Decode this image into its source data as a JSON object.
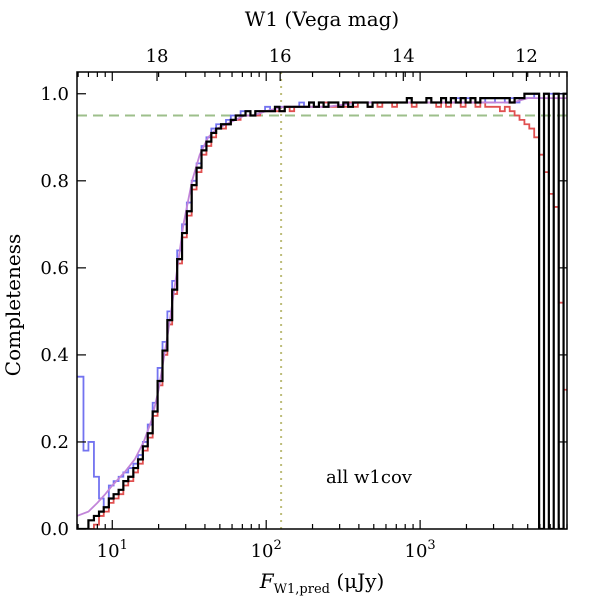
{
  "chart_data": {
    "type": "line",
    "xlabel": "F_W1,pred (μJy)",
    "xlabel_main": "F",
    "xlabel_sub": "W1,pred",
    "xlabel_unit": " (μJy)",
    "top_xlabel": "W1 (Vega mag)",
    "ylabel": "Completeness",
    "annotation": "all w1cov",
    "x_scale": "log",
    "xlim": [
      5.9,
      9000
    ],
    "ylim": [
      0,
      1.05
    ],
    "x_ticks": [
      {
        "value": 10,
        "base": "10",
        "exp": "1"
      },
      {
        "value": 100,
        "base": "10",
        "exp": "2"
      },
      {
        "value": 1000,
        "base": "10",
        "exp": "3"
      }
    ],
    "y_ticks": [
      {
        "value": 0.0,
        "label": "0.0"
      },
      {
        "value": 0.2,
        "label": "0.2"
      },
      {
        "value": 0.4,
        "label": "0.4"
      },
      {
        "value": 0.6,
        "label": "0.6"
      },
      {
        "value": 0.8,
        "label": "0.8"
      },
      {
        "value": 1.0,
        "label": "1.0"
      }
    ],
    "top_ticks": [
      {
        "mag": 18,
        "label": "18"
      },
      {
        "mag": 16,
        "label": "16"
      },
      {
        "mag": 14,
        "label": "14"
      },
      {
        "mag": 12,
        "label": "12"
      }
    ],
    "mag_zero_point_uJy": 309540000,
    "hline": {
      "y": 0.95,
      "color": "#9dbf8b",
      "style": "dashed"
    },
    "vline": {
      "x": 125,
      "color": "#bdbd7a",
      "style": "dotted"
    },
    "series": [
      {
        "color": "#7373f0",
        "step": true,
        "x": [
          5.9,
          6.5,
          7.0,
          7.6,
          8.2,
          8.8,
          9.5,
          10.2,
          11.0,
          11.8,
          12.7,
          13.7,
          14.7,
          15.8,
          17.0,
          18.3,
          19.7,
          21.2,
          22.8,
          24.5,
          26.4,
          28.4,
          30.5,
          32.8,
          35.3,
          38.0,
          40.9,
          44.0,
          47.3,
          50.9,
          54.8,
          58.9,
          63.4,
          68.2,
          73.4,
          79.0,
          85.0,
          91.4,
          98.3,
          106,
          114,
          122,
          132,
          142,
          152,
          164,
          176,
          190,
          204,
          220,
          236,
          254,
          274,
          294,
          317,
          341,
          366,
          394,
          424,
          456,
          491,
          528,
          568,
          611,
          658,
          708,
          762,
          820,
          882,
          949,
          1021,
          1099,
          1182,
          1272,
          1369,
          1473,
          1585,
          1706,
          1835,
          1975,
          2125,
          2287,
          2461,
          2648,
          2849,
          3066,
          3299,
          3550,
          3820,
          4110,
          4423,
          4760,
          5120,
          5510,
          5930,
          6380,
          6860,
          7380,
          7950,
          8550,
          9000
        ],
        "y": [
          0.35,
          0.18,
          0.2,
          0.12,
          0.07,
          0.05,
          0.1,
          0.11,
          0.12,
          0.13,
          0.14,
          0.15,
          0.17,
          0.2,
          0.24,
          0.29,
          0.37,
          0.43,
          0.5,
          0.57,
          0.64,
          0.7,
          0.75,
          0.8,
          0.84,
          0.88,
          0.9,
          0.92,
          0.93,
          0.93,
          0.94,
          0.95,
          0.95,
          0.96,
          0.96,
          0.95,
          0.96,
          0.96,
          0.97,
          0.96,
          0.97,
          0.97,
          0.97,
          0.97,
          0.97,
          0.98,
          0.97,
          0.98,
          0.97,
          0.98,
          0.98,
          0.98,
          0.98,
          0.97,
          0.98,
          0.98,
          0.98,
          0.98,
          0.98,
          0.98,
          0.98,
          0.98,
          0.98,
          0.98,
          0.98,
          0.98,
          0.98,
          0.98,
          0.98,
          0.98,
          0.98,
          0.98,
          0.98,
          0.98,
          0.99,
          0.98,
          0.98,
          0.99,
          0.98,
          0.99,
          0.98,
          0.98,
          0.99,
          0.98,
          0.98,
          0.99,
          0.99,
          0.98,
          0.99,
          0.98,
          0.99,
          0.99,
          0.99,
          1.0,
          0.99,
          1.0,
          1.0,
          1.0,
          1.0,
          1.0,
          1.0
        ]
      },
      {
        "color": "#e05050",
        "step": true,
        "x": [
          5.9,
          6.5,
          7.0,
          7.6,
          8.2,
          8.8,
          9.5,
          10.2,
          11.0,
          11.8,
          12.7,
          13.7,
          14.7,
          15.8,
          17.0,
          18.3,
          19.7,
          21.2,
          22.8,
          24.5,
          26.4,
          28.4,
          30.5,
          32.8,
          35.3,
          38.0,
          40.9,
          44.0,
          47.3,
          50.9,
          54.8,
          58.9,
          63.4,
          68.2,
          73.4,
          79.0,
          85.0,
          91.4,
          98.3,
          106,
          114,
          122,
          132,
          142,
          152,
          164,
          176,
          190,
          204,
          220,
          236,
          254,
          274,
          294,
          317,
          341,
          366,
          394,
          424,
          456,
          491,
          528,
          568,
          611,
          658,
          708,
          762,
          820,
          882,
          949,
          1021,
          1099,
          1182,
          1272,
          1369,
          1473,
          1585,
          1706,
          1835,
          1975,
          2125,
          2287,
          2461,
          2648,
          2849,
          3066,
          3299,
          3550,
          3820,
          4110,
          4423,
          4760,
          5120,
          5510,
          5930,
          6380,
          6860,
          7380,
          7950,
          8550,
          9000
        ],
        "y": [
          0.0,
          0.0,
          0.0,
          0.01,
          0.03,
          0.04,
          0.06,
          0.07,
          0.08,
          0.1,
          0.11,
          0.13,
          0.15,
          0.18,
          0.21,
          0.26,
          0.33,
          0.4,
          0.47,
          0.54,
          0.61,
          0.67,
          0.72,
          0.78,
          0.82,
          0.86,
          0.88,
          0.9,
          0.92,
          0.92,
          0.93,
          0.94,
          0.94,
          0.95,
          0.95,
          0.95,
          0.95,
          0.96,
          0.96,
          0.96,
          0.96,
          0.96,
          0.97,
          0.96,
          0.97,
          0.97,
          0.97,
          0.97,
          0.97,
          0.97,
          0.98,
          0.97,
          0.97,
          0.97,
          0.97,
          0.98,
          0.97,
          0.98,
          0.98,
          0.97,
          0.98,
          0.97,
          0.98,
          0.98,
          0.97,
          0.98,
          0.98,
          0.98,
          0.97,
          0.98,
          0.98,
          0.98,
          0.98,
          0.97,
          0.98,
          0.97,
          0.98,
          0.98,
          0.97,
          0.98,
          0.98,
          0.97,
          0.98,
          0.97,
          0.97,
          0.97,
          0.96,
          0.97,
          0.96,
          0.95,
          0.94,
          0.93,
          0.92,
          0.9,
          0.86,
          0.82,
          0.77,
          0.74,
          0.52,
          0.32,
          0.32
        ]
      },
      {
        "color": "#c285d9",
        "step": false,
        "x": [
          5.9,
          7,
          8,
          9,
          10,
          12,
          14,
          16,
          18,
          20,
          23,
          26,
          29,
          33,
          37,
          42,
          48,
          55,
          63,
          72,
          82,
          100,
          130,
          180,
          250,
          400,
          700,
          1200,
          2000,
          3000,
          4000,
          5000,
          6000,
          7000,
          8000,
          9000
        ],
        "y": [
          0.03,
          0.04,
          0.06,
          0.08,
          0.1,
          0.13,
          0.16,
          0.2,
          0.25,
          0.32,
          0.45,
          0.58,
          0.7,
          0.8,
          0.86,
          0.9,
          0.92,
          0.93,
          0.94,
          0.95,
          0.95,
          0.96,
          0.97,
          0.97,
          0.97,
          0.98,
          0.98,
          0.98,
          0.98,
          0.98,
          0.98,
          0.99,
          0.99,
          0.99,
          0.99,
          0.99
        ]
      },
      {
        "color": "#000000",
        "step": true,
        "x": [
          5.9,
          6.5,
          7.0,
          7.6,
          8.2,
          8.8,
          9.5,
          10.2,
          11.0,
          11.8,
          12.7,
          13.7,
          14.7,
          15.8,
          17.0,
          18.3,
          19.7,
          21.2,
          22.8,
          24.5,
          26.4,
          28.4,
          30.5,
          32.8,
          35.3,
          38.0,
          40.9,
          44.0,
          47.3,
          50.9,
          54.8,
          58.9,
          63.4,
          68.2,
          73.4,
          79.0,
          85.0,
          91.4,
          98.3,
          106,
          114,
          122,
          132,
          142,
          152,
          164,
          176,
          190,
          204,
          220,
          236,
          254,
          274,
          294,
          317,
          341,
          366,
          394,
          424,
          456,
          491,
          528,
          568,
          611,
          658,
          708,
          762,
          820,
          882,
          949,
          1021,
          1099,
          1182,
          1272,
          1369,
          1473,
          1585,
          1706,
          1835,
          1975,
          2125,
          2287,
          2461,
          2648,
          2849,
          3066,
          3299,
          3550,
          3820,
          4110,
          4423,
          4760,
          5120,
          5510,
          5930,
          6380,
          6860,
          7380,
          7950,
          8550,
          9000
        ],
        "y": [
          0.0,
          0.0,
          0.02,
          0.03,
          0.04,
          0.05,
          0.07,
          0.08,
          0.09,
          0.11,
          0.12,
          0.14,
          0.16,
          0.19,
          0.22,
          0.27,
          0.34,
          0.41,
          0.48,
          0.55,
          0.62,
          0.68,
          0.73,
          0.79,
          0.83,
          0.87,
          0.89,
          0.91,
          0.92,
          0.93,
          0.93,
          0.94,
          0.95,
          0.95,
          0.96,
          0.95,
          0.96,
          0.96,
          0.96,
          0.96,
          0.97,
          0.96,
          0.97,
          0.97,
          0.97,
          0.97,
          0.97,
          0.98,
          0.97,
          0.98,
          0.97,
          0.98,
          0.98,
          0.97,
          0.98,
          0.97,
          0.98,
          0.98,
          0.98,
          0.97,
          0.98,
          0.98,
          0.98,
          0.98,
          0.98,
          0.98,
          0.98,
          0.99,
          0.98,
          0.98,
          0.98,
          0.99,
          0.98,
          0.98,
          0.99,
          0.98,
          0.99,
          0.98,
          0.99,
          0.98,
          0.99,
          0.98,
          0.99,
          0.99,
          0.99,
          0.99,
          0.99,
          0.99,
          0.98,
          0.99,
          0.99,
          1.0,
          1.0,
          1.0,
          0.0,
          1.0,
          0.0,
          1.0,
          0.0,
          1.0,
          1.0
        ]
      }
    ]
  }
}
